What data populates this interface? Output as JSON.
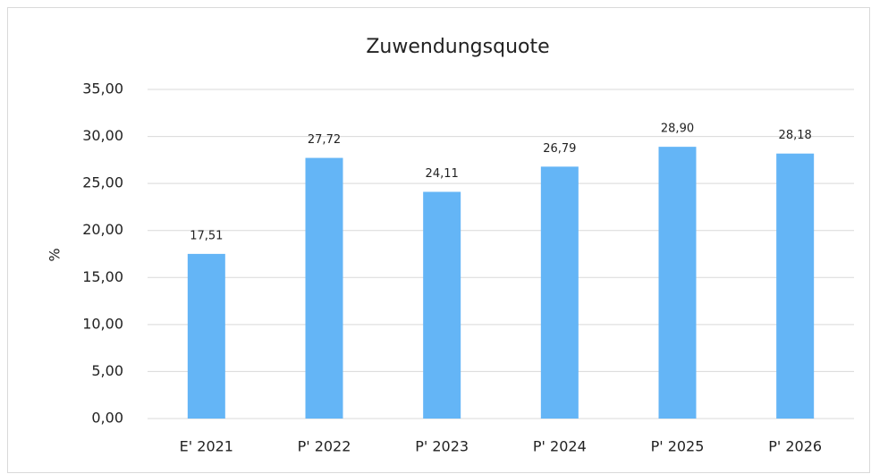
{
  "chart_data": {
    "type": "bar",
    "title": "Zuwendungsquote",
    "y_label": "%",
    "categories": [
      "E' 2021",
      "P' 2022",
      "P' 2023",
      "P' 2024",
      "P' 2025",
      "P' 2026"
    ],
    "values": [
      17.51,
      27.72,
      24.11,
      26.79,
      28.9,
      28.18
    ],
    "value_labels": [
      "17,51",
      "27,72",
      "24,11",
      "26,79",
      "28,90",
      "28,18"
    ],
    "color": "#64b5f6",
    "ylim": [
      0,
      35
    ],
    "yticks": [
      {
        "value": 0,
        "label": "0,00"
      },
      {
        "value": 5,
        "label": "5,00"
      },
      {
        "value": 10,
        "label": "10,00"
      },
      {
        "value": 15,
        "label": "15,00"
      },
      {
        "value": 20,
        "label": "20,00"
      },
      {
        "value": 25,
        "label": "25,00"
      },
      {
        "value": 30,
        "label": "30,00"
      },
      {
        "value": 35,
        "label": "35,00"
      }
    ],
    "grid": true
  }
}
